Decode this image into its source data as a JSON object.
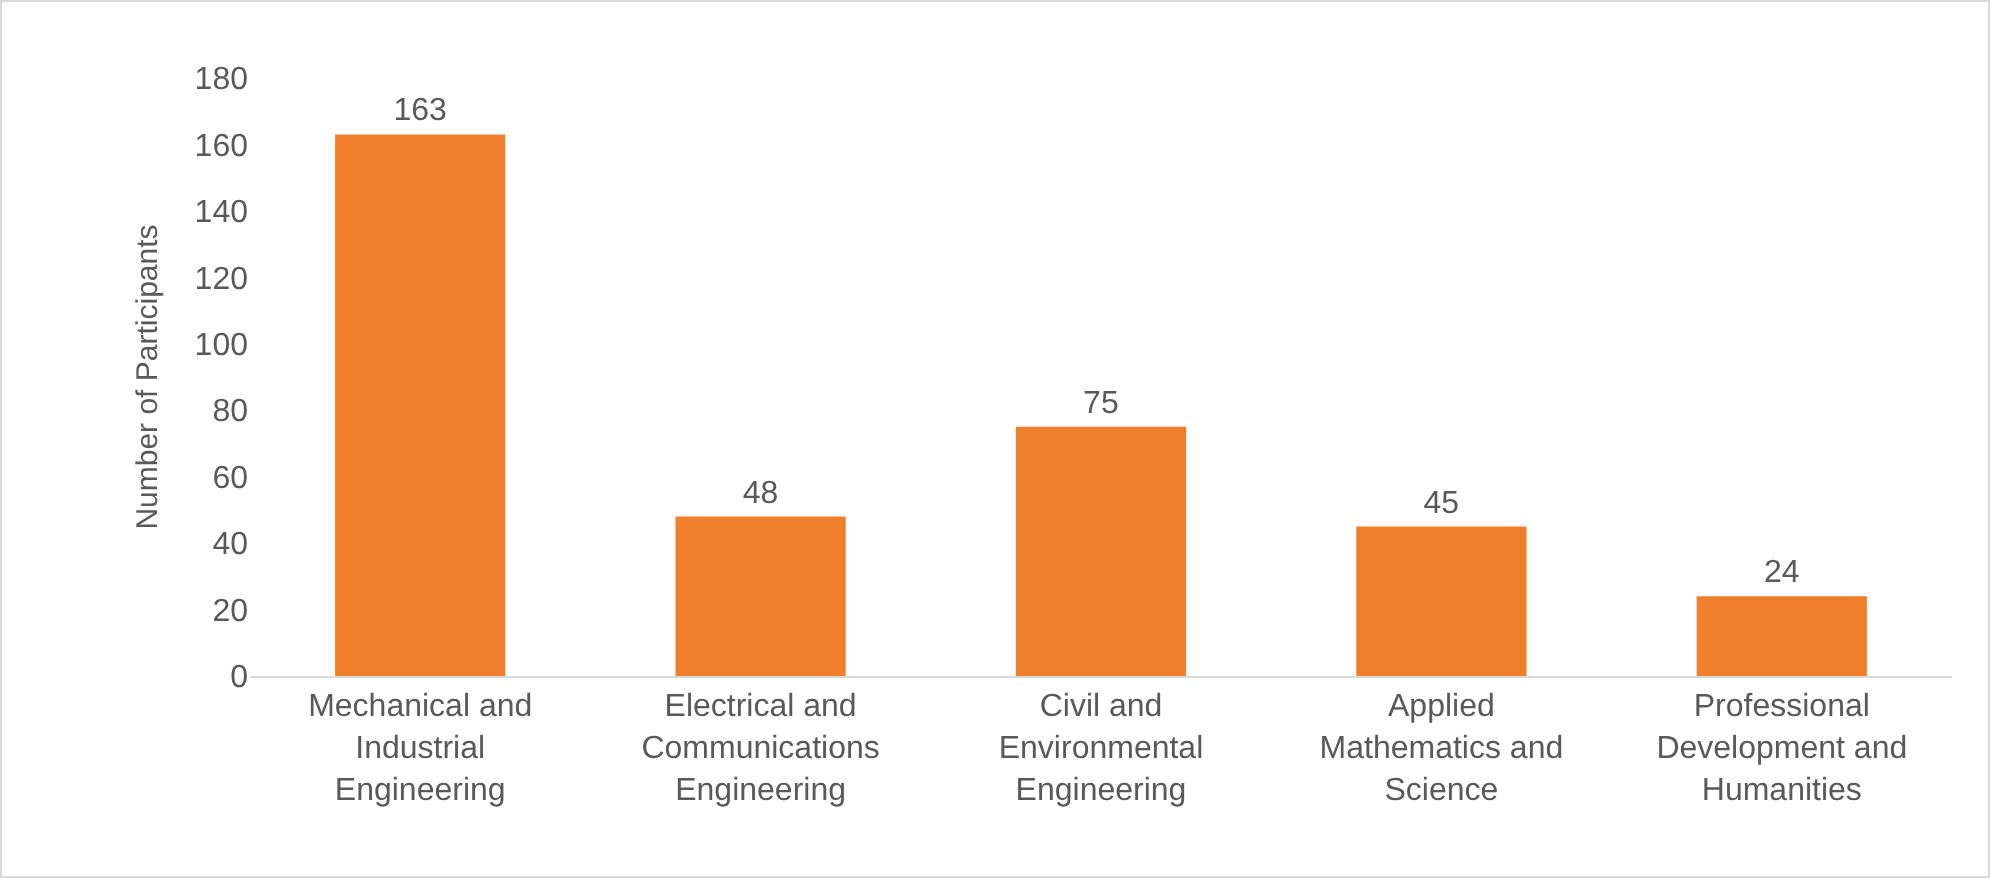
{
  "chart_data": {
    "type": "bar",
    "ylabel": "Number of Participants",
    "categories": [
      "Mechanical and Industrial Engineering",
      "Electrical and Communications Engineering",
      "Civil and Environmental Engineering",
      "Applied Mathematics and Science",
      "Professional Development and Humanities"
    ],
    "values": [
      163,
      48,
      75,
      45,
      24
    ],
    "color": "#f07f2c",
    "ylim": [
      0,
      180
    ],
    "yticks": [
      0,
      20,
      40,
      60,
      80,
      100,
      120,
      140,
      160,
      180
    ],
    "grid": false,
    "data_labels": true
  }
}
